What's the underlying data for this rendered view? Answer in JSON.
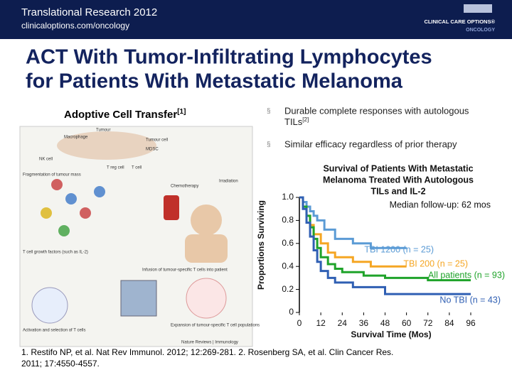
{
  "header": {
    "title": "Translational Research 2012",
    "url": "clinicaloptions.com/oncology",
    "logo_name": "CLINICAL CARE OPTIONS®",
    "logo_sub": "ONCOLOGY"
  },
  "title_lines": [
    "ACT With Tumor-Infiltrating Lymphocytes",
    "for Patients With Metastatic Melanoma"
  ],
  "figure": {
    "heading": "Adoptive Cell Transfer",
    "heading_ref": "[1]",
    "labels": [
      "Tumour",
      "Macrophage",
      "Tumour cell",
      "MDSC",
      "NK cell",
      "T reg cell",
      "T cell",
      "Irradiation",
      "Chemotherapy",
      "Fragmentation of tumour mass",
      "T cell growth factors (such as IL-2)",
      "Infusion of tumour-specific T cells into patient",
      "Activation and selection of T cells",
      "Expansion of tumour-specific T cell populations",
      "Nature Reviews | Immunology"
    ]
  },
  "bullets": [
    {
      "lines": [
        "Durable complete responses with autologous",
        "TILs"
      ],
      "ref": "[2]"
    },
    {
      "lines": [
        "Similar efficacy regardless of prior therapy"
      ]
    }
  ],
  "references": [
    "1. Restifo NP, et al. Nat Rev Immunol. 2012; 12:269-281. 2. Rosenberg SA, et al. Clin Cancer Res.",
    "2011; 17:4550-4557."
  ],
  "chart_data": {
    "type": "line",
    "step": true,
    "title_lines": [
      "Survival of Patients With Metastatic",
      "Melanoma Treated With Autologous",
      "TILs and IL-2"
    ],
    "subtitle": "Median follow-up: 62 mos",
    "xlabel": "Survival Time (Mos)",
    "ylabel": "Proportions Surviving",
    "xlim": [
      0,
      96
    ],
    "ylim": [
      0,
      1
    ],
    "xticks": [
      0,
      12,
      24,
      36,
      48,
      60,
      72,
      84,
      96
    ],
    "yticks": [
      0,
      0.2,
      0.4,
      0.6,
      0.8,
      {
        "value": 1,
        "label": "1.0"
      }
    ],
    "series": [
      {
        "name": "TBI 1200 (n = 25)",
        "color": "#5b9bd5",
        "x": [
          0,
          2,
          4,
          6,
          8,
          10,
          14,
          20,
          30,
          40,
          60
        ],
        "values": [
          1,
          0.96,
          0.92,
          0.88,
          0.84,
          0.8,
          0.72,
          0.64,
          0.6,
          0.56,
          0.56
        ]
      },
      {
        "name": "TBI 200 (n = 25)",
        "color": "#f5a623",
        "x": [
          0,
          2,
          4,
          6,
          8,
          12,
          16,
          20,
          30,
          40,
          60
        ],
        "values": [
          1,
          0.92,
          0.84,
          0.76,
          0.68,
          0.6,
          0.52,
          0.48,
          0.44,
          0.4,
          0.4
        ]
      },
      {
        "name": "All patients (n = 93)",
        "color": "#1fa32a",
        "x": [
          0,
          2,
          4,
          6,
          8,
          10,
          12,
          16,
          20,
          24,
          36,
          48,
          72,
          96
        ],
        "values": [
          1,
          0.92,
          0.84,
          0.74,
          0.64,
          0.56,
          0.48,
          0.42,
          0.38,
          0.35,
          0.32,
          0.3,
          0.28,
          0.28
        ]
      },
      {
        "name": "No TBI (n = 43)",
        "color": "#2f5fb3",
        "x": [
          0,
          2,
          4,
          6,
          8,
          10,
          12,
          16,
          20,
          30,
          48,
          96
        ],
        "values": [
          1,
          0.9,
          0.78,
          0.66,
          0.54,
          0.44,
          0.36,
          0.3,
          0.26,
          0.22,
          0.16,
          0.16
        ]
      }
    ]
  }
}
